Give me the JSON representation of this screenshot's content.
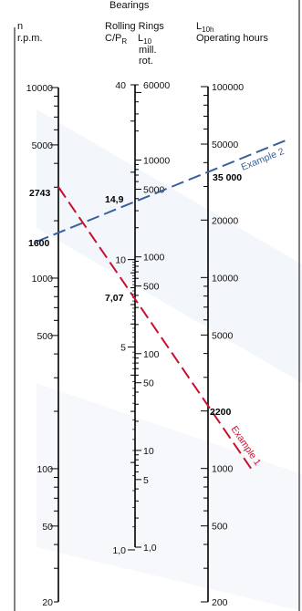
{
  "header": {
    "top_partial": "Bearings",
    "col_n": {
      "line1": "n",
      "line2": "r.p.m."
    },
    "col_rolling": {
      "line1": "Rolling Rings"
    },
    "col_cp": {
      "base": "C/P",
      "sub": "R"
    },
    "col_l10": {
      "base": "L",
      "sub": "10",
      "line2": "mill.",
      "line3": "rot."
    },
    "col_l10h": {
      "base": "L",
      "sub": "10h",
      "line2": "Operating hours"
    }
  },
  "scales": {
    "n": {
      "major_labels": [
        "10000",
        "5000",
        "1000",
        "500",
        "100",
        "50",
        "20"
      ]
    },
    "cp": {
      "major_labels": [
        "40",
        "10",
        "5",
        "1,0"
      ]
    },
    "l10": {
      "major_labels": [
        "60000",
        "10000",
        "5000",
        "1000",
        "500",
        "100",
        "50",
        "10",
        "5",
        "1,0"
      ]
    },
    "l10h": {
      "major_labels": [
        "100000",
        "50000",
        "20000",
        "10000",
        "5000",
        "1000",
        "500",
        "200"
      ]
    }
  },
  "examples": [
    {
      "name": "Example 1",
      "color": "#c8102e",
      "n_value": "2743",
      "cp_value": "7,07",
      "l10h_value": "2200"
    },
    {
      "name": "Example 2",
      "color": "#3a5f9a",
      "n_value": "1600",
      "cp_value": "14,9",
      "l10h_value": "35 000"
    }
  ],
  "colors": {
    "axis": "#000000",
    "example1": "#c8102e",
    "example2": "#3a5f9a"
  }
}
